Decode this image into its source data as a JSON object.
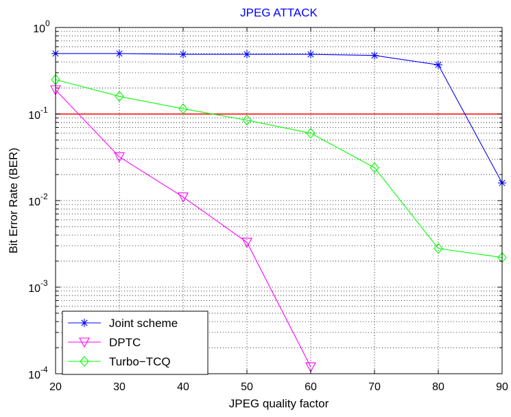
{
  "chart_data": {
    "type": "line",
    "title": "JPEG ATTACK",
    "xlabel": "JPEG quality factor",
    "ylabel": "Bit Error Rate (BER)",
    "x": [
      20,
      30,
      40,
      50,
      60,
      70,
      80,
      90
    ],
    "xlim": [
      20,
      90
    ],
    "ylim": [
      0.0001,
      1
    ],
    "yscale": "log",
    "xticks": [
      "20",
      "30",
      "40",
      "50",
      "60",
      "70",
      "80",
      "90"
    ],
    "yticks": [
      {
        "base": "10",
        "exp": "-4",
        "value": 0.0001
      },
      {
        "base": "10",
        "exp": "-3",
        "value": 0.001
      },
      {
        "base": "10",
        "exp": "-2",
        "value": 0.01
      },
      {
        "base": "10",
        "exp": "-1",
        "value": 0.1
      },
      {
        "base": "10",
        "exp": "0",
        "value": 1
      }
    ],
    "grid": true,
    "legend_position": "bottom-left",
    "threshold": {
      "y": 0.1,
      "color": "#ff0000"
    },
    "series": [
      {
        "name": "Joint scheme",
        "color": "#0000ff",
        "marker": "asterisk",
        "x": [
          20,
          30,
          40,
          50,
          60,
          70,
          80,
          90
        ],
        "values": [
          0.5,
          0.5,
          0.49,
          0.49,
          0.49,
          0.475,
          0.37,
          0.016
        ]
      },
      {
        "name": "DPTC",
        "color": "#ff00ff",
        "marker": "triangle-down",
        "x": [
          20,
          30,
          40,
          50,
          60
        ],
        "values": [
          0.19,
          0.032,
          0.011,
          0.0033,
          0.00012
        ]
      },
      {
        "name": "Turbo−TCQ",
        "color": "#00ff00",
        "marker": "diamond",
        "x": [
          20,
          30,
          40,
          50,
          60,
          70,
          80,
          90
        ],
        "values": [
          0.25,
          0.16,
          0.115,
          0.085,
          0.06,
          0.024,
          0.0028,
          0.0022
        ]
      }
    ]
  }
}
